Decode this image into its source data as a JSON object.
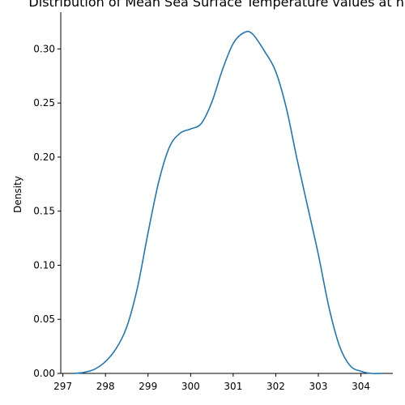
{
  "chart_data": {
    "type": "line",
    "title": "Distribution of Mean Sea Surface Temperature values at hum",
    "xlabel": "",
    "ylabel": "Density",
    "xlim": [
      296.95,
      304.75
    ],
    "ylim": [
      0,
      0.334
    ],
    "x_ticks": [
      297,
      298,
      299,
      300,
      301,
      302,
      303,
      304
    ],
    "y_ticks": [
      0.0,
      0.05,
      0.1,
      0.15,
      0.2,
      0.25,
      0.3
    ],
    "y_tick_labels": [
      "0.00",
      "0.05",
      "0.10",
      "0.15",
      "0.20",
      "0.25",
      "0.30"
    ],
    "grid": false,
    "series": [
      {
        "color": "#1f77b4",
        "x": [
          297.25,
          297.5,
          297.75,
          298.0,
          298.25,
          298.5,
          298.75,
          299.0,
          299.25,
          299.5,
          299.75,
          300.0,
          300.25,
          300.5,
          300.75,
          301.0,
          301.25,
          301.45,
          301.75,
          302.0,
          302.25,
          302.5,
          302.75,
          303.0,
          303.25,
          303.5,
          303.75,
          304.0,
          304.25,
          304.5
        ],
        "y": [
          0.0,
          0.001,
          0.004,
          0.011,
          0.023,
          0.043,
          0.079,
          0.13,
          0.177,
          0.209,
          0.222,
          0.226,
          0.231,
          0.251,
          0.281,
          0.305,
          0.315,
          0.314,
          0.297,
          0.279,
          0.245,
          0.198,
          0.154,
          0.11,
          0.061,
          0.025,
          0.007,
          0.002,
          0.0,
          0.0
        ]
      }
    ]
  }
}
